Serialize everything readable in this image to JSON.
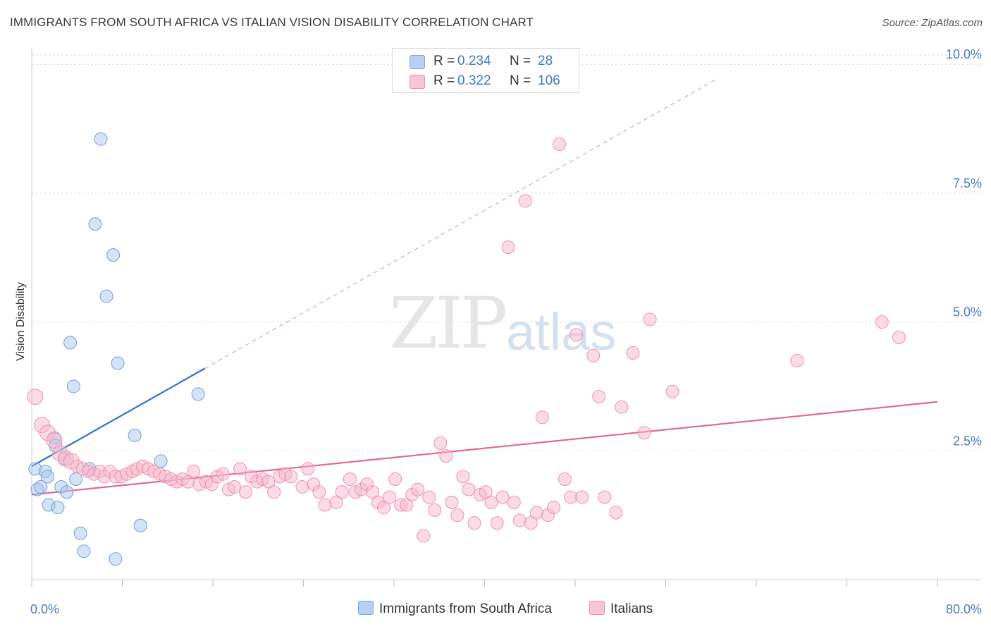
{
  "title": "IMMIGRANTS FROM SOUTH AFRICA VS ITALIAN VISION DISABILITY CORRELATION CHART",
  "source": "Source: ZipAtlas.com",
  "watermark": {
    "zip": "ZIP",
    "atlas": "atlas"
  },
  "legend": {
    "r_label": "R =",
    "n_label": "N =",
    "series": [
      {
        "r": "0.234",
        "n": "28",
        "color": "#a9c7ee",
        "border": "#7aa6dc"
      },
      {
        "r": "0.322",
        "n": "106",
        "color": "#f7b8cb",
        "border": "#ee91ad"
      }
    ]
  },
  "bottom_legend": [
    "Immigrants from South Africa",
    "Italians"
  ],
  "chart_data": {
    "type": "scatter",
    "title": "IMMIGRANTS FROM SOUTH AFRICA VS ITALIAN VISION DISABILITY CORRELATION CHART",
    "ylabel": "Vision Disability",
    "xlabel": "",
    "xlim": [
      0,
      80
    ],
    "ylim": [
      0,
      10.4
    ],
    "x_tick_labels": [
      "0.0%",
      "80.0%"
    ],
    "y_tick_labels": [
      "2.5%",
      "5.0%",
      "7.5%",
      "10.0%"
    ],
    "y_tick_values": [
      2.5,
      5.0,
      7.5,
      10.0
    ],
    "grid": true,
    "series": [
      {
        "name": "Immigrants from South Africa",
        "color": "#a9c7ee",
        "stroke": "#6f9fd8",
        "trend_color": "#2f72c9",
        "trend": {
          "x0": 0,
          "y0": 2.2,
          "x1": 15.3,
          "y1": 4.1,
          "dash_to_x": 60.6
        },
        "points": [
          [
            0.3,
            2.15
          ],
          [
            0.5,
            1.75
          ],
          [
            0.8,
            1.8
          ],
          [
            1.2,
            2.1
          ],
          [
            1.4,
            2.0
          ],
          [
            1.5,
            1.45
          ],
          [
            2.0,
            2.75
          ],
          [
            2.1,
            2.6
          ],
          [
            2.3,
            1.4
          ],
          [
            2.6,
            1.8
          ],
          [
            2.9,
            2.35
          ],
          [
            3.1,
            1.7
          ],
          [
            3.4,
            4.6
          ],
          [
            3.7,
            3.75
          ],
          [
            3.9,
            1.95
          ],
          [
            4.3,
            0.9
          ],
          [
            4.6,
            0.55
          ],
          [
            5.1,
            2.15
          ],
          [
            5.6,
            6.9
          ],
          [
            6.1,
            8.55
          ],
          [
            6.6,
            5.5
          ],
          [
            7.2,
            6.3
          ],
          [
            7.4,
            0.4
          ],
          [
            7.6,
            4.2
          ],
          [
            9.1,
            2.8
          ],
          [
            9.6,
            1.05
          ],
          [
            11.4,
            2.3
          ],
          [
            14.7,
            3.6
          ]
        ]
      },
      {
        "name": "Italians",
        "color": "#f7b8cb",
        "stroke": "#ee91ad",
        "trend_color": "#e0689a",
        "trend": {
          "x0": 0,
          "y0": 1.65,
          "x1": 80,
          "y1": 3.45
        },
        "points": [
          [
            0.3,
            3.55
          ],
          [
            0.9,
            3.0
          ],
          [
            1.4,
            2.85
          ],
          [
            2.0,
            2.7
          ],
          [
            2.5,
            2.45
          ],
          [
            3.0,
            2.35
          ],
          [
            3.5,
            2.3
          ],
          [
            4.0,
            2.2
          ],
          [
            4.5,
            2.15
          ],
          [
            5.0,
            2.1
          ],
          [
            5.5,
            2.05
          ],
          [
            6.0,
            2.1
          ],
          [
            6.4,
            2.0
          ],
          [
            6.9,
            2.1
          ],
          [
            7.4,
            2.0
          ],
          [
            7.9,
            2.0
          ],
          [
            8.4,
            2.05
          ],
          [
            8.9,
            2.1
          ],
          [
            9.3,
            2.15
          ],
          [
            9.8,
            2.2
          ],
          [
            10.3,
            2.15
          ],
          [
            10.8,
            2.1
          ],
          [
            11.3,
            2.05
          ],
          [
            11.8,
            2.0
          ],
          [
            12.3,
            1.95
          ],
          [
            12.8,
            1.9
          ],
          [
            13.3,
            1.95
          ],
          [
            13.8,
            1.9
          ],
          [
            14.3,
            2.1
          ],
          [
            14.8,
            1.85
          ],
          [
            15.4,
            1.9
          ],
          [
            15.9,
            1.85
          ],
          [
            16.4,
            2.0
          ],
          [
            16.9,
            2.05
          ],
          [
            17.4,
            1.75
          ],
          [
            17.9,
            1.8
          ],
          [
            18.4,
            2.15
          ],
          [
            18.9,
            1.7
          ],
          [
            19.4,
            2.0
          ],
          [
            19.9,
            1.9
          ],
          [
            20.4,
            1.95
          ],
          [
            20.9,
            1.9
          ],
          [
            21.4,
            1.7
          ],
          [
            21.9,
            2.0
          ],
          [
            22.4,
            2.05
          ],
          [
            22.9,
            2.0
          ],
          [
            23.9,
            1.8
          ],
          [
            24.4,
            2.15
          ],
          [
            24.9,
            1.85
          ],
          [
            25.4,
            1.7
          ],
          [
            25.9,
            1.45
          ],
          [
            26.9,
            1.5
          ],
          [
            27.4,
            1.7
          ],
          [
            28.1,
            1.95
          ],
          [
            28.6,
            1.7
          ],
          [
            29.1,
            1.75
          ],
          [
            29.6,
            1.85
          ],
          [
            30.1,
            1.7
          ],
          [
            30.6,
            1.5
          ],
          [
            31.1,
            1.4
          ],
          [
            31.6,
            1.6
          ],
          [
            32.1,
            1.95
          ],
          [
            32.6,
            1.45
          ],
          [
            33.1,
            1.45
          ],
          [
            33.6,
            1.65
          ],
          [
            34.1,
            1.75
          ],
          [
            34.6,
            0.85
          ],
          [
            35.1,
            1.6
          ],
          [
            35.6,
            1.35
          ],
          [
            36.1,
            2.65
          ],
          [
            36.6,
            2.4
          ],
          [
            37.1,
            1.5
          ],
          [
            37.6,
            1.25
          ],
          [
            38.1,
            2.0
          ],
          [
            38.6,
            1.75
          ],
          [
            39.1,
            1.1
          ],
          [
            39.6,
            1.65
          ],
          [
            40.1,
            1.7
          ],
          [
            40.6,
            1.5
          ],
          [
            41.1,
            1.1
          ],
          [
            41.6,
            1.6
          ],
          [
            42.1,
            6.45
          ],
          [
            42.6,
            1.5
          ],
          [
            43.1,
            1.15
          ],
          [
            43.6,
            7.35
          ],
          [
            44.1,
            1.1
          ],
          [
            44.6,
            1.3
          ],
          [
            45.1,
            3.15
          ],
          [
            45.6,
            1.25
          ],
          [
            46.1,
            1.4
          ],
          [
            46.6,
            8.45
          ],
          [
            47.1,
            1.95
          ],
          [
            47.6,
            1.6
          ],
          [
            48.1,
            4.75
          ],
          [
            48.6,
            1.6
          ],
          [
            49.6,
            4.35
          ],
          [
            50.1,
            3.55
          ],
          [
            50.6,
            1.6
          ],
          [
            51.6,
            1.3
          ],
          [
            52.1,
            3.35
          ],
          [
            53.1,
            4.4
          ],
          [
            54.1,
            2.85
          ],
          [
            54.6,
            5.05
          ],
          [
            56.6,
            3.65
          ],
          [
            67.6,
            4.25
          ],
          [
            75.1,
            5.0
          ],
          [
            76.6,
            4.7
          ]
        ]
      }
    ]
  }
}
